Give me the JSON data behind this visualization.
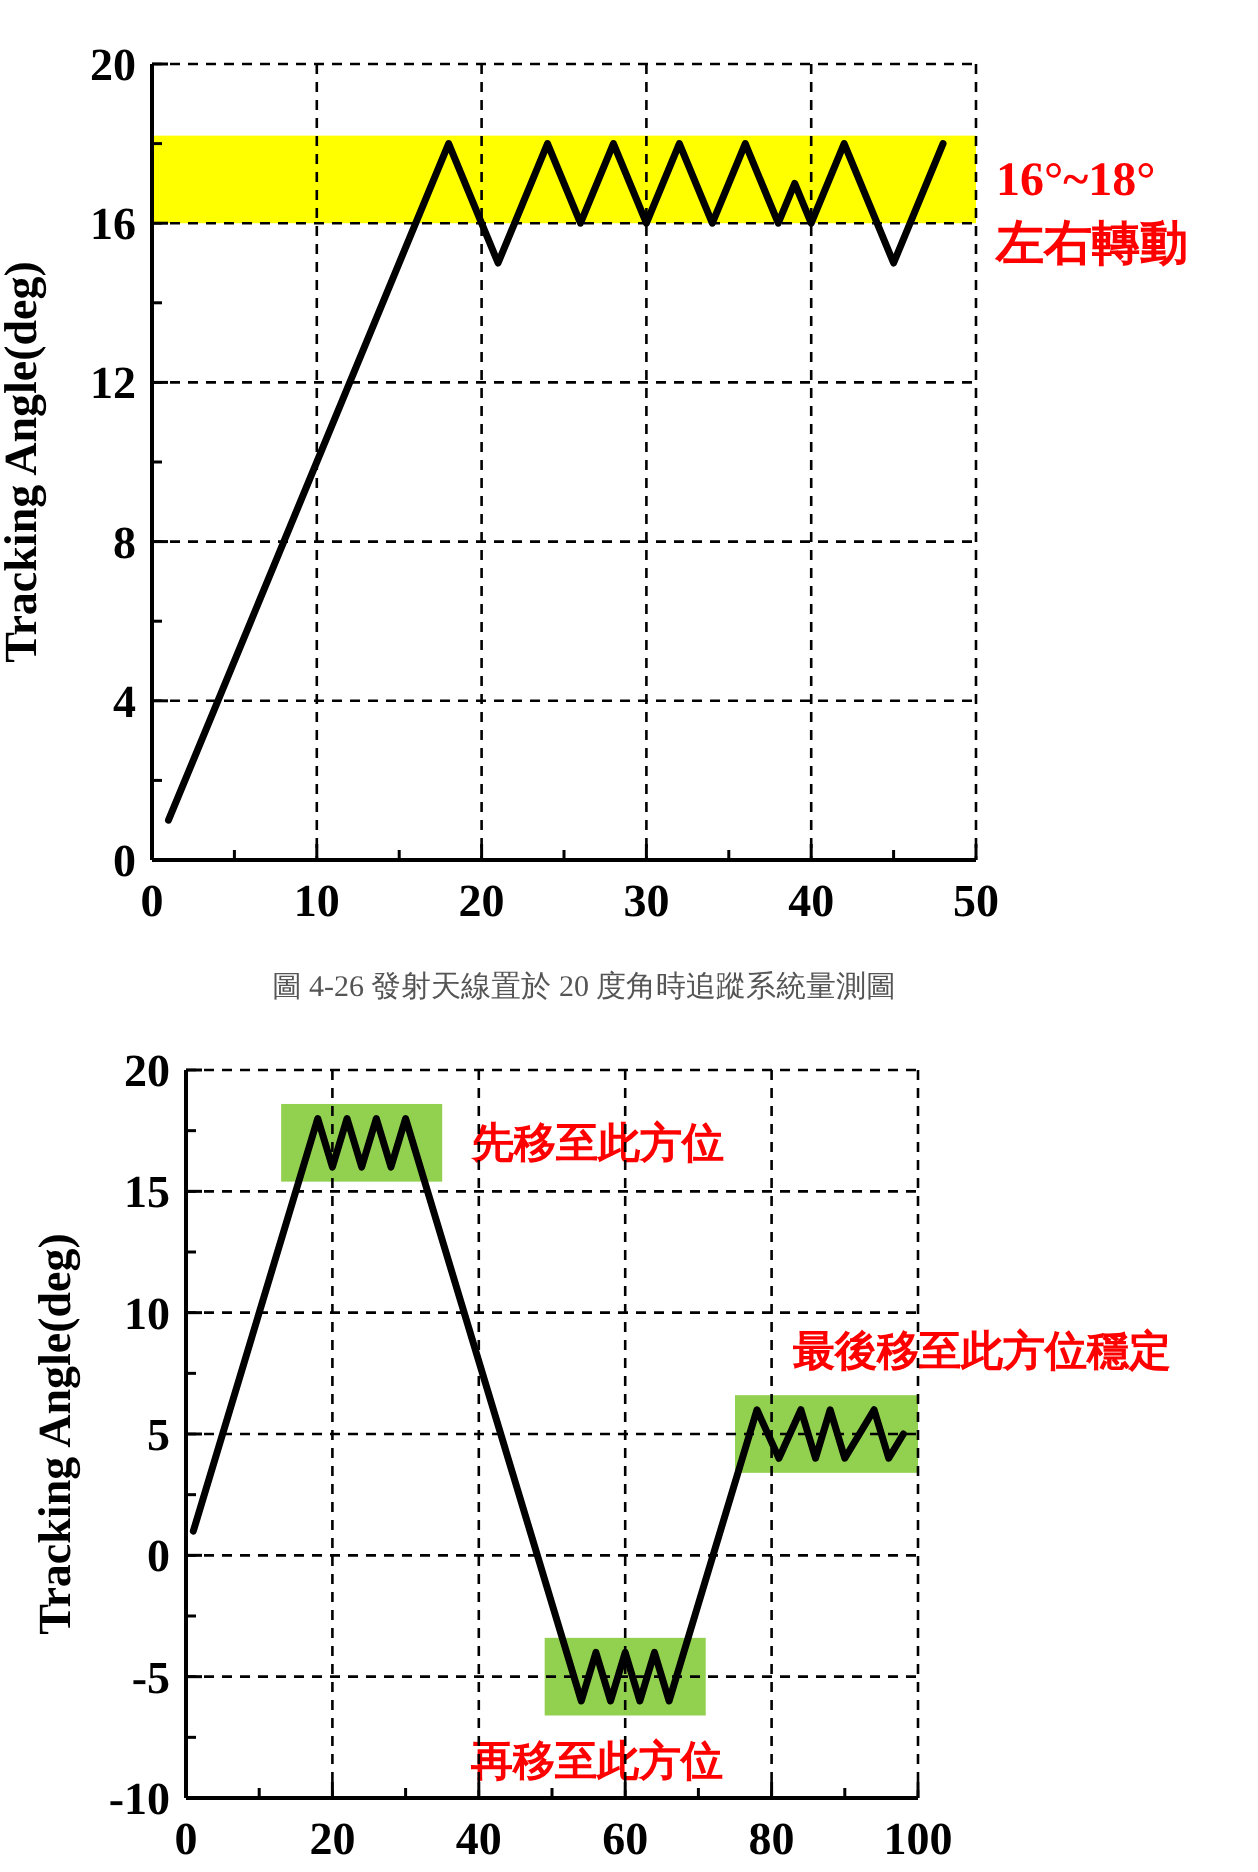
{
  "chart_data": [
    {
      "type": "line",
      "ylabel": "Tracking Angle(deg)",
      "xlim": [
        0,
        50
      ],
      "ylim": [
        0,
        20
      ],
      "xticks": [
        0,
        {
          "value": 5,
          "label": null
        },
        10,
        {
          "value": 15,
          "label": null
        },
        20,
        {
          "value": 25,
          "label": null
        },
        30,
        {
          "value": 35,
          "label": null
        },
        40,
        {
          "value": 45,
          "label": null
        },
        50
      ],
      "yticks": [
        0,
        {
          "value": 2,
          "label": null
        },
        4,
        {
          "value": 6,
          "label": null
        },
        8,
        {
          "value": 10,
          "label": null
        },
        12,
        {
          "value": 14,
          "label": null
        },
        16,
        {
          "value": 18,
          "label": null
        },
        20
      ],
      "grid": true,
      "x": [
        1,
        18,
        21,
        24,
        26,
        28,
        30,
        32,
        34,
        36,
        38,
        39,
        40,
        42,
        45,
        48
      ],
      "series": [
        {
          "color": "#000000",
          "values": [
            1,
            18,
            15,
            18,
            16,
            18,
            16,
            18,
            16,
            18,
            16,
            17,
            16,
            18,
            15,
            18
          ]
        }
      ],
      "bands": [
        {
          "axis": "y",
          "from": 16,
          "to": 18.2,
          "label": "16°~18° 左右轉動",
          "color": "#ffff00"
        }
      ],
      "annotations": [
        "圖 4-26 發射天線置於 20 度角時追蹤系統量測圖"
      ]
    },
    {
      "type": "line",
      "ylabel": "Tracking Angle(deg)",
      "xlim": [
        0,
        100
      ],
      "ylim": [
        -10,
        20
      ],
      "xticks": [
        0,
        {
          "value": 10,
          "label": null
        },
        20,
        {
          "value": 30,
          "label": null
        },
        40,
        {
          "value": 50,
          "label": null
        },
        60,
        {
          "value": 70,
          "label": null
        },
        80,
        {
          "value": 90,
          "label": null
        },
        100
      ],
      "yticks": [
        -10,
        {
          "value": -7.5,
          "label": null
        },
        -5,
        {
          "value": -2.5,
          "label": null
        },
        0,
        {
          "value": 2.5,
          "label": null
        },
        5,
        {
          "value": 7.5,
          "label": null
        },
        10,
        {
          "value": 12.5,
          "label": null
        },
        15,
        {
          "value": 17.5,
          "label": null
        },
        20
      ],
      "grid": true,
      "x": [
        1,
        18,
        20,
        22,
        24,
        26,
        28,
        30,
        54,
        56,
        58,
        60,
        62,
        64,
        66,
        78,
        81,
        84,
        86,
        88,
        90,
        92,
        94,
        96,
        98
      ],
      "series": [
        {
          "color": "#000000",
          "values": [
            1,
            18,
            16,
            18,
            16,
            18,
            16,
            18,
            -6,
            -4,
            -6,
            -4,
            -6,
            -4,
            -6,
            6,
            4,
            6,
            4,
            6,
            4,
            5,
            6,
            4,
            5
          ]
        }
      ],
      "bands": [
        {
          "axis": "x",
          "from": 13,
          "to": 35,
          "color": "#92d050",
          "label": "先移至此方位"
        },
        {
          "axis": "x",
          "from": 49,
          "to": 71,
          "color": "#92d050",
          "label": "再移至此方位"
        },
        {
          "axis": "x",
          "from": 75,
          "to": 100,
          "color": "#92d050",
          "label": "最後移至此方位穩定"
        }
      ]
    }
  ]
}
